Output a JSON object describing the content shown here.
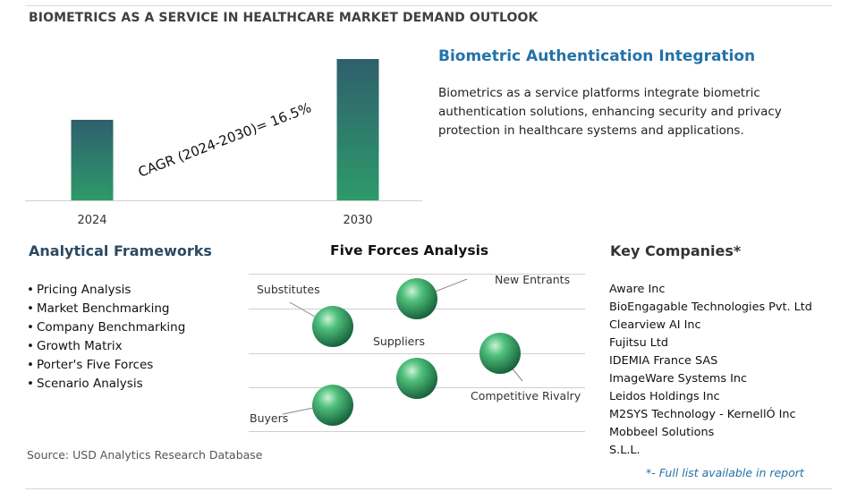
{
  "header": {
    "title": "BIOMETRICS AS A SERVICE IN HEALTHCARE MARKET DEMAND OUTLOOK"
  },
  "chart_data": {
    "type": "bar",
    "categories": [
      "2024",
      "2030"
    ],
    "relative_heights": [
      0.57,
      1.0
    ],
    "annotation": "CAGR (2024-2030)=  16.5%",
    "bar_color_top": "#2f5f6d",
    "bar_color_bottom": "#2e9a6a"
  },
  "integration": {
    "title": "Biometric Authentication Integration",
    "body": "Biometrics as a service platforms integrate biometric authentication solutions, enhancing security and privacy protection in healthcare systems and applications."
  },
  "frameworks": {
    "title": "Analytical Frameworks",
    "items": [
      "Pricing Analysis",
      "Market Benchmarking",
      "Company Benchmarking",
      "Growth Matrix",
      "Porter's Five Forces",
      "Scenario Analysis"
    ]
  },
  "five_forces": {
    "title": "Five Forces Analysis",
    "labels": {
      "new_entrants": "New Entrants",
      "substitutes": "Substitutes",
      "suppliers": "Suppliers",
      "competitive_rivalry": "Competitive Rivalry",
      "buyers": "Buyers"
    },
    "sphere_color": "#2e9e5e"
  },
  "companies": {
    "title": "Key Companies*",
    "items": [
      "Aware Inc",
      "BioEngagable Technologies Pvt. Ltd",
      "Clearview AI Inc",
      "Fujitsu Ltd",
      "IDEMIA France SAS",
      "ImageWare Systems Inc",
      "Leidos Holdings Inc",
      "M2SYS Technology - KernellÓ Inc",
      "Mobbeel Solutions",
      "S.L.L."
    ],
    "note": "*- Full list available in report"
  },
  "footer": {
    "source": "Source: USD Analytics Research Database"
  }
}
